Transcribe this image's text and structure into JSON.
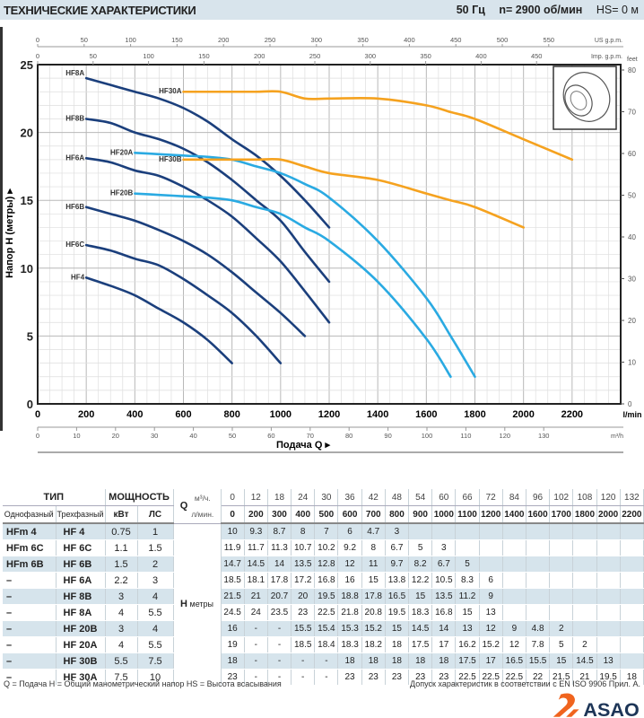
{
  "header": {
    "title": "ТЕХНИЧЕСКИЕ ХАРАКТЕРИСТИКИ",
    "freq": "50 Гц",
    "speed": "n= 2900 об/мин",
    "hs": "HS= 0 м"
  },
  "chart_data": {
    "type": "line",
    "xlabel": "Подача Q ▸",
    "ylabel": "Напор H (метры) ▸",
    "xlim": [
      0,
      2400
    ],
    "ylim": [
      0,
      25
    ],
    "grid": true,
    "x_unit": "l/min",
    "x_ticks": [
      0,
      200,
      400,
      600,
      800,
      1000,
      1200,
      1400,
      1600,
      1800,
      2000,
      2200
    ],
    "y_ticks": [
      0,
      5,
      10,
      15,
      20,
      25
    ],
    "secondary_axes": {
      "us_gpm": {
        "unit": "US g.p.m.",
        "ticks": [
          0,
          50,
          100,
          150,
          200,
          250,
          300,
          350,
          400,
          450,
          500,
          550
        ]
      },
      "imp_gpm": {
        "unit": "Imp. g.p.m.",
        "ticks": [
          0,
          50,
          100,
          150,
          200,
          250,
          300,
          350,
          400,
          450
        ]
      },
      "m3h": {
        "unit": "m³/h",
        "ticks": [
          0,
          10,
          20,
          30,
          40,
          50,
          60,
          70,
          80,
          90,
          100,
          110,
          120,
          130
        ]
      },
      "feet": {
        "unit": "feet",
        "ticks": [
          0,
          10,
          20,
          30,
          40,
          50,
          60,
          70,
          80
        ]
      }
    },
    "colors": {
      "HF": "#1b3f7c",
      "HF20": "#2aaae2",
      "HF30": "#f5a21f"
    },
    "series": [
      {
        "name": "HF8A",
        "color": "#1b3f7c",
        "x": [
          200,
          300,
          400,
          500,
          600,
          700,
          800,
          900,
          1000,
          1100,
          1200
        ],
        "y": [
          24,
          23.5,
          23,
          22.5,
          21.8,
          20.8,
          19.5,
          18.3,
          16.8,
          15,
          13
        ]
      },
      {
        "name": "HF8B",
        "color": "#1b3f7c",
        "x": [
          200,
          300,
          400,
          500,
          600,
          700,
          800,
          900,
          1000,
          1100,
          1200
        ],
        "y": [
          21,
          20.7,
          20,
          19.5,
          18.8,
          17.8,
          16.5,
          15,
          13.5,
          11.2,
          9
        ]
      },
      {
        "name": "HF6A",
        "color": "#1b3f7c",
        "x": [
          200,
          300,
          400,
          500,
          600,
          700,
          800,
          900,
          1000,
          1100,
          1200
        ],
        "y": [
          18.1,
          17.8,
          17.2,
          16.8,
          16,
          15,
          13.8,
          12.2,
          10.5,
          8.3,
          6
        ]
      },
      {
        "name": "HF6B",
        "color": "#1b3f7c",
        "x": [
          200,
          300,
          400,
          500,
          600,
          700,
          800,
          900,
          1000,
          1100
        ],
        "y": [
          14.5,
          14,
          13.5,
          12.8,
          12,
          11,
          9.7,
          8.2,
          6.7,
          5
        ]
      },
      {
        "name": "HF6C",
        "color": "#1b3f7c",
        "x": [
          200,
          300,
          400,
          500,
          600,
          700,
          800,
          900,
          1000
        ],
        "y": [
          11.7,
          11.3,
          10.7,
          10.2,
          9.2,
          8,
          6.7,
          5,
          3
        ]
      },
      {
        "name": "HF4",
        "color": "#1b3f7c",
        "x": [
          200,
          300,
          400,
          500,
          600,
          700,
          800
        ],
        "y": [
          9.3,
          8.7,
          8,
          7,
          6,
          4.7,
          3
        ]
      },
      {
        "name": "HF20A",
        "color": "#2aaae2",
        "x": [
          400,
          500,
          600,
          700,
          800,
          900,
          1000,
          1100,
          1200,
          1400,
          1600,
          1700,
          1800
        ],
        "y": [
          18.5,
          18.4,
          18.3,
          18.2,
          18,
          17.5,
          17,
          16.2,
          15.2,
          12,
          7.8,
          5,
          2
        ]
      },
      {
        "name": "HF20B",
        "color": "#2aaae2",
        "x": [
          400,
          500,
          600,
          700,
          800,
          900,
          1000,
          1100,
          1200,
          1400,
          1600,
          1700
        ],
        "y": [
          15.5,
          15.4,
          15.3,
          15.2,
          15,
          14.5,
          14,
          13,
          12,
          9,
          4.8,
          2
        ]
      },
      {
        "name": "HF30A",
        "color": "#f5a21f",
        "x": [
          600,
          700,
          800,
          900,
          1000,
          1100,
          1200,
          1400,
          1600,
          1700,
          1800,
          2000,
          2200
        ],
        "y": [
          23,
          23,
          23,
          23,
          23,
          22.5,
          22.5,
          22.5,
          22,
          21.5,
          21,
          19.5,
          18
        ]
      },
      {
        "name": "HF30B",
        "color": "#f5a21f",
        "x": [
          600,
          700,
          800,
          900,
          1000,
          1100,
          1200,
          1400,
          1600,
          1700,
          1800,
          2000
        ],
        "y": [
          18,
          18,
          18,
          18,
          18,
          17.5,
          17,
          16.5,
          15.5,
          15,
          14.5,
          13
        ]
      }
    ]
  },
  "table": {
    "h_type": "ТИП",
    "h_power": "МОЩНОСТЬ",
    "h_single": "Однофазный",
    "h_three": "Трехфазный",
    "h_kw": "кВт",
    "h_hp": "ЛС",
    "q_label": "Q",
    "q_m3h_unit": "м³/ч.",
    "q_lmin_unit": "л/мин.",
    "h_label": "H",
    "h_unit": "метры",
    "q_m3h": [
      "0",
      "12",
      "18",
      "24",
      "30",
      "36",
      "42",
      "48",
      "54",
      "60",
      "66",
      "72",
      "84",
      "96",
      "102",
      "108",
      "120",
      "132"
    ],
    "q_lmin": [
      "0",
      "200",
      "300",
      "400",
      "500",
      "600",
      "700",
      "800",
      "900",
      "1000",
      "1100",
      "1200",
      "1400",
      "1600",
      "1700",
      "1800",
      "2000",
      "2200"
    ],
    "rows": [
      {
        "single": "HFm 4",
        "three": "HF 4",
        "kw": "0.75",
        "hp": "1",
        "h": [
          "10",
          "9.3",
          "8.7",
          "8",
          "7",
          "6",
          "4.7",
          "3",
          "",
          "",
          "",
          "",
          "",
          "",
          "",
          "",
          "",
          ""
        ]
      },
      {
        "single": "HFm 6C",
        "three": "HF 6C",
        "kw": "1.1",
        "hp": "1.5",
        "h": [
          "11.9",
          "11.7",
          "11.3",
          "10.7",
          "10.2",
          "9.2",
          "8",
          "6.7",
          "5",
          "3",
          "",
          "",
          "",
          "",
          "",
          "",
          "",
          ""
        ]
      },
      {
        "single": "HFm 6B",
        "three": "HF 6B",
        "kw": "1.5",
        "hp": "2",
        "h": [
          "14.7",
          "14.5",
          "14",
          "13.5",
          "12.8",
          "12",
          "11",
          "9.7",
          "8.2",
          "6.7",
          "5",
          "",
          "",
          "",
          "",
          "",
          "",
          ""
        ]
      },
      {
        "single": "–",
        "three": "HF 6A",
        "kw": "2.2",
        "hp": "3",
        "h": [
          "18.5",
          "18.1",
          "17.8",
          "17.2",
          "16.8",
          "16",
          "15",
          "13.8",
          "12.2",
          "10.5",
          "8.3",
          "6",
          "",
          "",
          "",
          "",
          "",
          ""
        ]
      },
      {
        "single": "–",
        "three": "HF 8B",
        "kw": "3",
        "hp": "4",
        "h": [
          "21.5",
          "21",
          "20.7",
          "20",
          "19.5",
          "18.8",
          "17.8",
          "16.5",
          "15",
          "13.5",
          "11.2",
          "9",
          "",
          "",
          "",
          "",
          "",
          ""
        ]
      },
      {
        "single": "–",
        "three": "HF 8A",
        "kw": "4",
        "hp": "5.5",
        "h": [
          "24.5",
          "24",
          "23.5",
          "23",
          "22.5",
          "21.8",
          "20.8",
          "19.5",
          "18.3",
          "16.8",
          "15",
          "13",
          "",
          "",
          "",
          "",
          "",
          ""
        ]
      },
      {
        "single": "–",
        "three": "HF 20B",
        "kw": "3",
        "hp": "4",
        "h": [
          "16",
          "-",
          "-",
          "15.5",
          "15.4",
          "15.3",
          "15.2",
          "15",
          "14.5",
          "14",
          "13",
          "12",
          "9",
          "4.8",
          "2",
          "",
          "",
          ""
        ]
      },
      {
        "single": "–",
        "three": "HF 20A",
        "kw": "4",
        "hp": "5.5",
        "h": [
          "19",
          "-",
          "-",
          "18.5",
          "18.4",
          "18.3",
          "18.2",
          "18",
          "17.5",
          "17",
          "16.2",
          "15.2",
          "12",
          "7.8",
          "5",
          "2",
          "",
          ""
        ]
      },
      {
        "single": "–",
        "three": "HF 30B",
        "kw": "5.5",
        "hp": "7.5",
        "h": [
          "18",
          "-",
          "-",
          "-",
          "-",
          "18",
          "18",
          "18",
          "18",
          "18",
          "17.5",
          "17",
          "16.5",
          "15.5",
          "15",
          "14.5",
          "13",
          ""
        ]
      },
      {
        "single": "–",
        "three": "HF 30A",
        "kw": "7.5",
        "hp": "10",
        "h": [
          "23",
          "-",
          "-",
          "-",
          "-",
          "23",
          "23",
          "23",
          "23",
          "23",
          "22.5",
          "22.5",
          "22.5",
          "22",
          "21.5",
          "21",
          "19.5",
          "18"
        ]
      }
    ]
  },
  "footer": {
    "legend": "Q = Подача   H = Общий манометрический напор   HS = Высота всасывания",
    "tolerance": "Допуск характеристик в соответствии с EN ISO 9906 Прил. А."
  },
  "logo": {
    "text": "ASAO",
    "accent": "#f0641e",
    "color": "#1d3557"
  }
}
